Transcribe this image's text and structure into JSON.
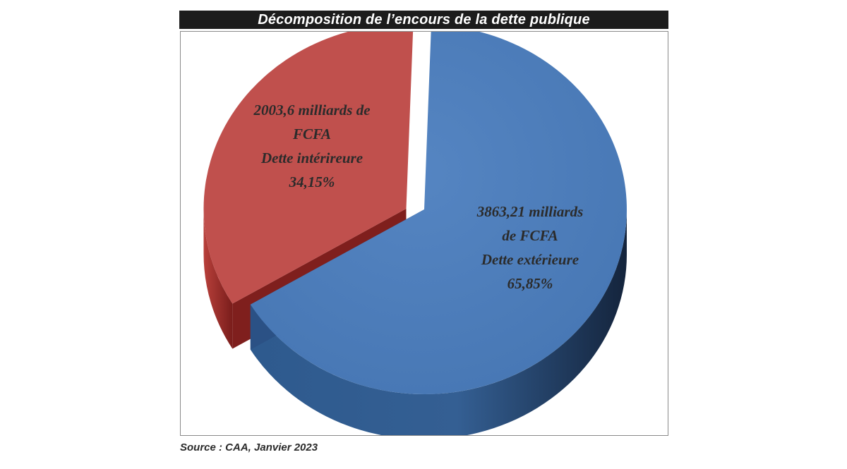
{
  "title": "Décomposition de l’encours de la dette publique",
  "source": "Source : CAA, Janvier 2023",
  "chart_data": {
    "type": "pie",
    "title": "Décomposition de l’encours de la dette publique",
    "slices": [
      {
        "label": "Dette intérireure",
        "value": 2003.6,
        "percent": 34.15,
        "color": "#c0504d",
        "exploded": true,
        "label_lines": [
          "2003,6 milliards de",
          "FCFA",
          "Dette intérireure",
          "34,15%"
        ]
      },
      {
        "label": "Dette extérieure",
        "value": 3863.21,
        "percent": 65.85,
        "color": "#4f81bd",
        "exploded": false,
        "label_lines": [
          "3863,21 milliards",
          "de FCFA",
          "Dette extérieure",
          "65,85%"
        ]
      }
    ],
    "unit": "milliards de FCFA",
    "style": "3d-exploded"
  }
}
